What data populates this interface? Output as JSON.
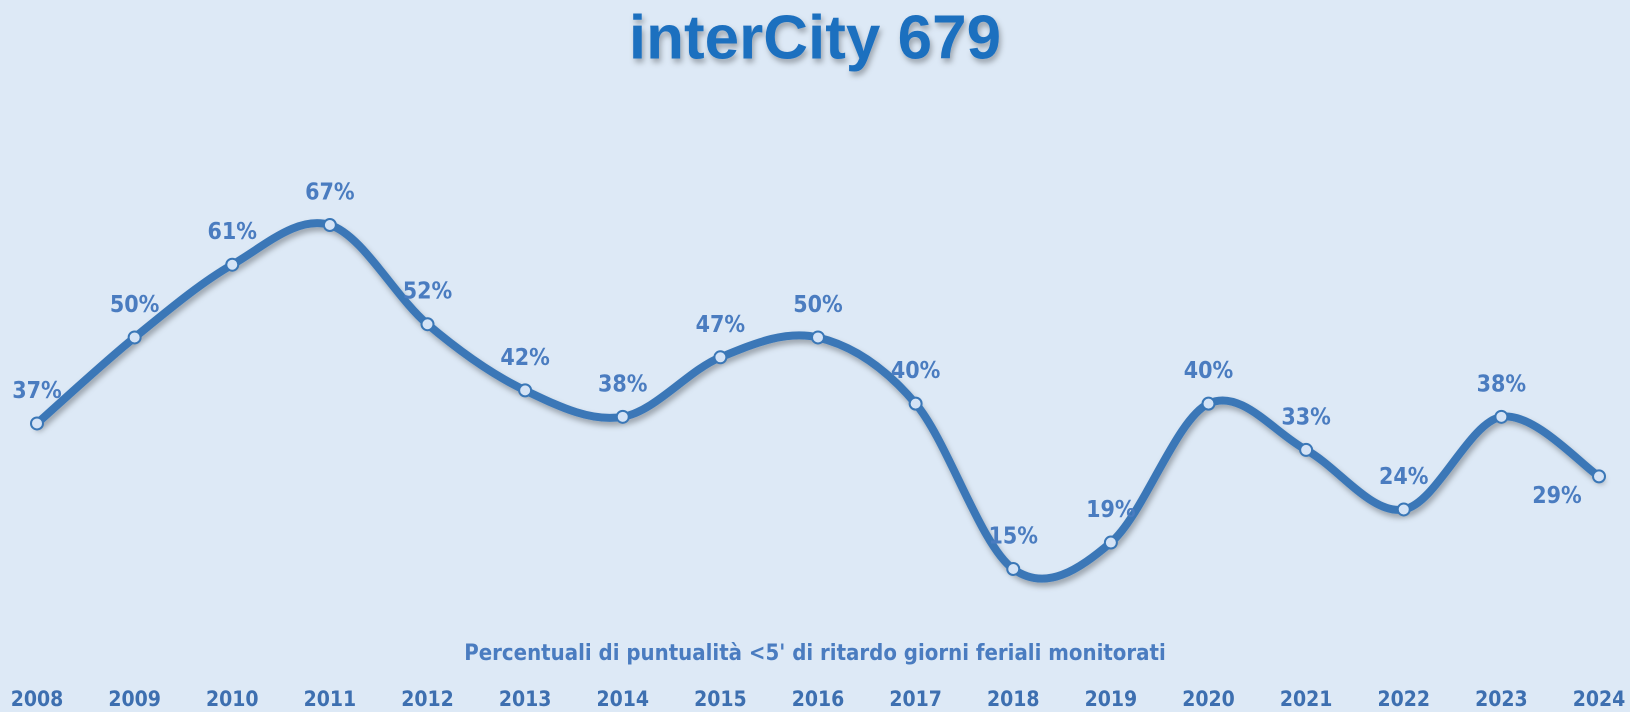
{
  "chart_data": {
    "type": "line",
    "title": "interCity 679",
    "subtitle": "Percentuali di puntualità <5' di ritardo giorni feriali monitorati",
    "categories": [
      "2008",
      "2009",
      "2010",
      "2011",
      "2012",
      "2013",
      "2014",
      "2015",
      "2016",
      "2017",
      "2018",
      "2019",
      "2020",
      "2021",
      "2022",
      "2023",
      "2024"
    ],
    "series": [
      {
        "name": "interCity 679",
        "color": "#3a77b7",
        "values": [
          37,
          50,
          61,
          67,
          52,
          42,
          38,
          47,
          50,
          40,
          15,
          19,
          40,
          33,
          24,
          38,
          29
        ],
        "value_labels": [
          "37%",
          "50%",
          "61%",
          "67%",
          "52%",
          "42%",
          "38%",
          "47%",
          "50%",
          "40%",
          "15%",
          "19%",
          "40%",
          "33%",
          "24%",
          "38%",
          "29%"
        ]
      }
    ]
  }
}
